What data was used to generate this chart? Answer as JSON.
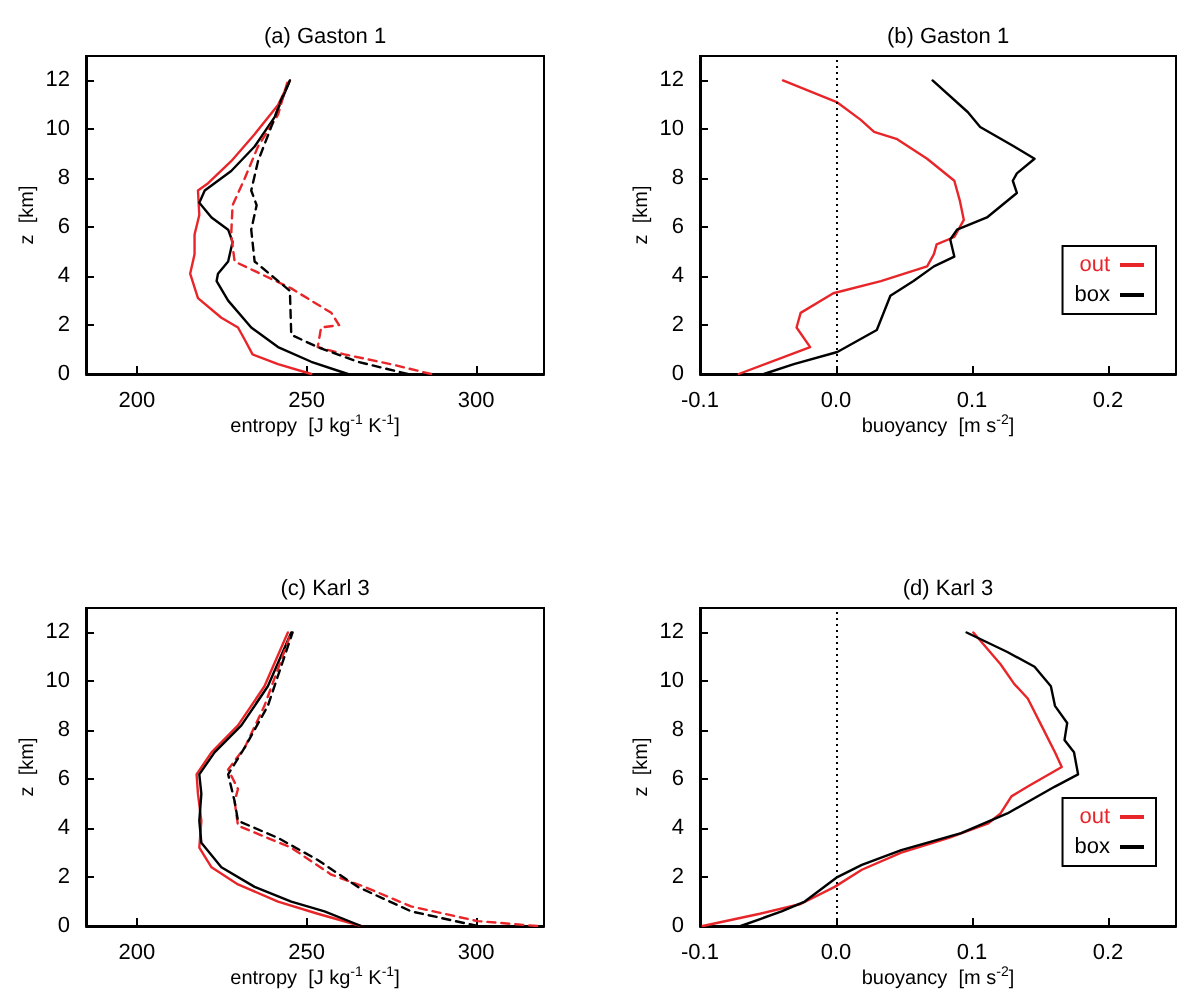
{
  "chart_data": [
    {
      "type": "line",
      "title": "(a) Gaston 1",
      "xlabel": "entropy  [J kg$^{-1}$ K$^{-1}$]",
      "ylabel": "z  [km]",
      "xlim": [
        185,
        320
      ],
      "xticks": [
        200,
        250,
        300
      ],
      "ylim": [
        0,
        13
      ],
      "yticks": [
        0,
        2,
        4,
        6,
        8,
        10,
        12
      ],
      "grid": false,
      "series": [
        {
          "color": "#e8262a",
          "line_style": "solid",
          "x": [
            251.4,
            241.6,
            234.1,
            231.8,
            229.8,
            224.9,
            218,
            215.7,
            217,
            217,
            218.4,
            218,
            221,
            227.8,
            234.7,
            241.6,
            245.1
          ],
          "values": [
            0,
            0.4,
            0.8,
            1.4,
            1.9,
            2.3,
            3.1,
            4.1,
            4.9,
            5.7,
            6.5,
            7.5,
            7.8,
            8.7,
            9.8,
            11,
            12
          ]
        },
        {
          "color": "#000000",
          "line_style": "solid",
          "x": [
            262.2,
            251.4,
            241.6,
            233.7,
            226.9,
            223.5,
            223.9,
            226.9,
            228.2,
            226.9,
            222,
            218.4,
            220,
            227.8,
            234.7,
            240.6,
            245.1
          ],
          "values": [
            0,
            0.5,
            1.1,
            1.9,
            3,
            3.8,
            4.1,
            4.6,
            5.4,
            5.9,
            6.4,
            7,
            7.5,
            8.3,
            9.3,
            10.5,
            12
          ]
        },
        {
          "color": "#e8262a",
          "line_style": "dashed",
          "x": [
            286.7,
            274.9,
            261.2,
            253.3,
            254.3,
            259.6,
            257.3,
            245.5,
            228.8,
            227.8,
            228.2,
            231.8,
            235.7,
            241.6,
            244.5
          ],
          "values": [
            0,
            0.4,
            0.8,
            1.1,
            1.9,
            2,
            2.5,
            3.5,
            4.6,
            5.7,
            6.9,
            8,
            9.3,
            10.6,
            12
          ]
        },
        {
          "color": "#000000",
          "line_style": "dashed",
          "x": [
            279.8,
            265.1,
            253.3,
            245.5,
            245.1,
            234.7,
            233.7,
            235.3,
            233.7,
            235.7,
            239.6,
            242.5,
            245.1
          ],
          "values": [
            0,
            0.5,
            1.1,
            1.6,
            3.4,
            4.6,
            5.9,
            6.9,
            7.5,
            8.7,
            10.1,
            11.2,
            12
          ]
        }
      ]
    },
    {
      "type": "line",
      "title": "(b) Gaston 1",
      "xlabel": "buoyancy  [m s$^{-2}$]",
      "ylabel": "z  [km]",
      "xlim": [
        -0.1,
        0.25
      ],
      "xticks": [
        -0.1,
        {
          "value": 0,
          "label": "0.0"
        },
        0.1,
        0.2
      ],
      "ylim": [
        0,
        13
      ],
      "yticks": [
        0,
        2,
        4,
        6,
        8,
        10,
        12
      ],
      "grid": false,
      "legend": "bottom right",
      "ref_lines": [
        {
          "axis": "x",
          "value": 0,
          "color": "#000000",
          "line_style": "dotted"
        }
      ],
      "series": [
        {
          "name": "out",
          "color": "#e8262a",
          "line_style": "solid",
          "x": [
            -0.0715,
            -0.019,
            -0.029,
            -0.026,
            -0.002,
            0.033,
            0.067,
            0.072,
            0.074,
            0.087,
            0.094,
            0.091,
            0.087,
            0.067,
            0.045,
            0.028,
            0.018,
            0.001,
            -0.039
          ],
          "values": [
            0,
            1.1,
            1.9,
            2.5,
            3.3,
            3.8,
            4.4,
            4.9,
            5.3,
            5.6,
            6.3,
            7.1,
            7.9,
            8.8,
            9.6,
            9.9,
            10.4,
            11.1,
            12
          ]
        },
        {
          "name": "box",
          "color": "#000000",
          "line_style": "solid",
          "x": [
            -0.053,
            -0.031,
            0.001,
            0.03,
            0.04,
            0.057,
            0.072,
            0.087,
            0.084,
            0.089,
            0.111,
            0.133,
            0.13,
            0.133,
            0.146,
            0.131,
            0.106,
            0.097,
            0.071
          ],
          "values": [
            0,
            0.4,
            0.9,
            1.8,
            3.2,
            3.8,
            4.4,
            4.8,
            5.5,
            5.9,
            6.4,
            7.4,
            7.9,
            8.2,
            8.8,
            9.3,
            10.1,
            10.7,
            12
          ]
        }
      ]
    },
    {
      "type": "line",
      "title": "(c) Karl 3",
      "xlabel": "entropy  [J kg$^{-1}$ K$^{-1}$]",
      "ylabel": "z  [km]",
      "xlim": [
        185,
        320
      ],
      "xticks": [
        200,
        250,
        300
      ],
      "ylim": [
        0,
        13
      ],
      "yticks": [
        0,
        2,
        4,
        6,
        8,
        10,
        12
      ],
      "grid": false,
      "series": [
        {
          "color": "#e8262a",
          "line_style": "solid",
          "x": [
            266.1,
            253.3,
            241.6,
            229.8,
            222,
            218.4,
            219,
            218,
            217.6,
            222,
            229.8,
            237.6,
            244.5
          ],
          "values": [
            0,
            0.5,
            1,
            1.7,
            2.4,
            3.2,
            4.3,
            5.4,
            6.2,
            7.1,
            8.2,
            9.8,
            12
          ]
        },
        {
          "color": "#000000",
          "line_style": "solid",
          "x": [
            266.1,
            255.3,
            245.5,
            234.7,
            224.9,
            219,
            218.4,
            219,
            218.4,
            222.9,
            230.8,
            238.6,
            245.5
          ],
          "values": [
            0,
            0.6,
            1,
            1.6,
            2.4,
            3.4,
            4.3,
            5.4,
            6.2,
            7.1,
            8.2,
            9.8,
            12
          ]
        },
        {
          "color": "#e8262a",
          "line_style": "dashed",
          "x": [
            318,
            300.4,
            280.8,
            267.1,
            257.3,
            245.5,
            229.8,
            228.8,
            229.8,
            226.9,
            231.8,
            237.6,
            245.5
          ],
          "values": [
            0,
            0.2,
            0.8,
            1.6,
            2.1,
            3.2,
            4.1,
            5.1,
            5.6,
            6.4,
            7.3,
            9,
            12
          ]
        },
        {
          "color": "#000000",
          "line_style": "dashed",
          "x": [
            300.4,
            280.8,
            265.1,
            253.3,
            241.6,
            229.8,
            228.8,
            226.9,
            231.8,
            238.6,
            245.9
          ],
          "values": [
            0,
            0.6,
            1.6,
            2.7,
            3.6,
            4.3,
            5.1,
            6.2,
            7.3,
            9,
            12
          ]
        }
      ]
    },
    {
      "type": "line",
      "title": "(d) Karl 3",
      "xlabel": "buoyancy  [m s$^{-2}$]",
      "ylabel": "z  [km]",
      "xlim": [
        -0.1,
        0.25
      ],
      "xticks": [
        -0.1,
        {
          "value": 0,
          "label": "0.0"
        },
        0.1,
        0.2
      ],
      "ylim": [
        0,
        13
      ],
      "yticks": [
        0,
        2,
        4,
        6,
        8,
        10,
        12
      ],
      "grid": false,
      "legend": "bottom right",
      "ref_lines": [
        {
          "axis": "x",
          "value": 0,
          "color": "#000000",
          "line_style": "dotted"
        }
      ],
      "series": [
        {
          "name": "out",
          "color": "#e8262a",
          "line_style": "solid",
          "x": [
            -0.098,
            -0.056,
            -0.026,
            -0.001,
            0.019,
            0.048,
            0.083,
            0.112,
            0.121,
            0.129,
            0.141,
            0.166,
            0.161,
            0.151,
            0.141,
            0.131,
            0.121,
            0.101
          ],
          "values": [
            0,
            0.5,
            0.9,
            1.6,
            2.3,
            3,
            3.6,
            4.2,
            4.6,
            5.3,
            5.7,
            6.5,
            7.1,
            8.2,
            9.3,
            9.9,
            10.7,
            12
          ]
        },
        {
          "name": "box",
          "color": "#000000",
          "line_style": "solid",
          "x": [
            -0.07,
            -0.04,
            -0.023,
            0.001,
            0.019,
            0.048,
            0.092,
            0.126,
            0.161,
            0.178,
            0.175,
            0.168,
            0.17,
            0.161,
            0.158,
            0.146,
            0.126,
            0.096
          ],
          "values": [
            0,
            0.6,
            1,
            2,
            2.5,
            3.1,
            3.8,
            4.6,
            5.7,
            6.2,
            7.1,
            7.6,
            8.3,
            9,
            9.8,
            10.6,
            11.2,
            12
          ]
        }
      ]
    }
  ]
}
